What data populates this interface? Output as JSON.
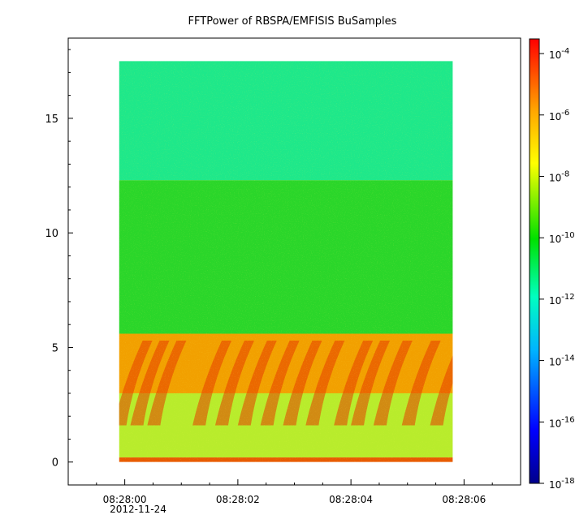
{
  "chart_data": {
    "type": "heatmap",
    "title": "FFTPower of RBSPA/EMFISIS  BuSamples",
    "xlabel": "",
    "ylabel": "",
    "x_tick_labels": [
      "08:28:00",
      "08:28:02",
      "08:28:04",
      "08:28:06"
    ],
    "x_date_label": "2012-11-24",
    "x_range_seconds_after_08_28_00": [
      -1.0,
      7.0
    ],
    "data_x_extent": [
      "08:27:59.9",
      "08:28:05.8"
    ],
    "y_ticks": [
      0,
      5,
      10,
      15
    ],
    "ylim": [
      -1.0,
      18.5
    ],
    "data_y_extent": [
      0,
      17.5
    ],
    "colorbar": {
      "scale": "log",
      "range": [
        1e-18,
        0.0003
      ],
      "tick_values": [
        1e-18,
        1e-16,
        1e-14,
        1e-12,
        1e-10,
        1e-08,
        1e-06,
        0.0001
      ],
      "tick_bases": [
        "10",
        "10",
        "10",
        "10",
        "10",
        "10",
        "10",
        "10"
      ],
      "tick_exponents": [
        "-18",
        "-16",
        "-14",
        "-12",
        "-10",
        "-8",
        "-6",
        "-4"
      ],
      "colormap": [
        "#00008b",
        "#0000ff",
        "#00b4ff",
        "#00ffc0",
        "#00e000",
        "#ffff00",
        "#ffa500",
        "#ff0000"
      ]
    },
    "bands": [
      {
        "y_range": [
          12.3,
          17.5
        ],
        "level": 1e-11,
        "color": "#1ee88a"
      },
      {
        "y_range": [
          5.6,
          12.3
        ],
        "level": 1e-10,
        "color": "#2ad62a"
      },
      {
        "y_range": [
          3.0,
          5.6
        ],
        "level": 1e-07,
        "color": "#f2a000"
      },
      {
        "y_range": [
          0.2,
          3.0
        ],
        "level": 1e-08,
        "color": "#b8ec2c"
      },
      {
        "y_range": [
          0.0,
          0.2
        ],
        "level": 1e-06,
        "color": "#e85a00"
      }
    ],
    "chorus_elements_center_seconds": [
      0.0,
      0.3,
      0.6,
      1.4,
      1.8,
      2.2,
      2.6,
      3.0,
      3.4,
      3.9,
      4.2,
      4.6,
      5.1,
      5.6
    ]
  }
}
